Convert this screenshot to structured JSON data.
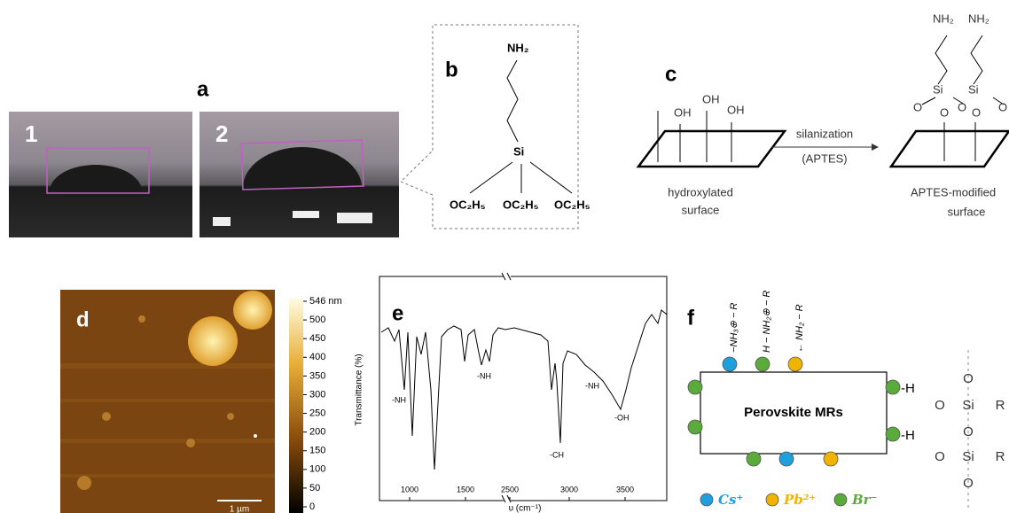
{
  "panel_a": {
    "label": "a",
    "images": [
      "1",
      "2"
    ]
  },
  "panel_b": {
    "label": "b",
    "amine": "NH₂",
    "silicon": "Si",
    "ethoxy": [
      "OC₂H₅",
      "OC₂H₅",
      "OC₂H₅"
    ]
  },
  "panel_c": {
    "label": "c",
    "hydroxyls": [
      "OH",
      "OH",
      "OH"
    ],
    "arrow_top": "silanization",
    "arrow_bottom": "(APTES)",
    "left_caption": [
      "hydroxylated",
      "surface"
    ],
    "right_caption": [
      "APTES-modified",
      "surface"
    ],
    "amines": [
      "NH₂",
      "NH₂"
    ],
    "silicons": [
      "Si",
      "Si"
    ],
    "oxygens": [
      "O",
      "O",
      "O",
      "O",
      "O"
    ]
  },
  "panel_d": {
    "label": "d",
    "colorbar_ticks": [
      "546 nm",
      500,
      450,
      400,
      350,
      300,
      250,
      200,
      150,
      100,
      50,
      0
    ],
    "scale_bar": "1 µm"
  },
  "panel_e": {
    "label": "e",
    "y_label": "Transmittance (%)",
    "x_label": "υ (cm⁻¹)",
    "x_ticks": [
      1000,
      1500,
      2500,
      3000,
      3500
    ],
    "peaks": [
      "-NH",
      "-NH",
      "-CH",
      "-NH",
      "-OH"
    ]
  },
  "panel_f": {
    "label": "f",
    "core": "Perovskite MRs",
    "ligands": [
      "−NH₃⊕ − R",
      "H − NH₂⊕ − R",
      "← NH₂ − R"
    ],
    "bonds": [
      "-H",
      "-H"
    ],
    "chain": [
      "O",
      "O",
      "Si",
      "R",
      "O",
      "O",
      "Si",
      "R",
      "O"
    ],
    "legend": [
      "Cs⁺",
      "Pb²⁺",
      "Br⁻"
    ]
  }
}
